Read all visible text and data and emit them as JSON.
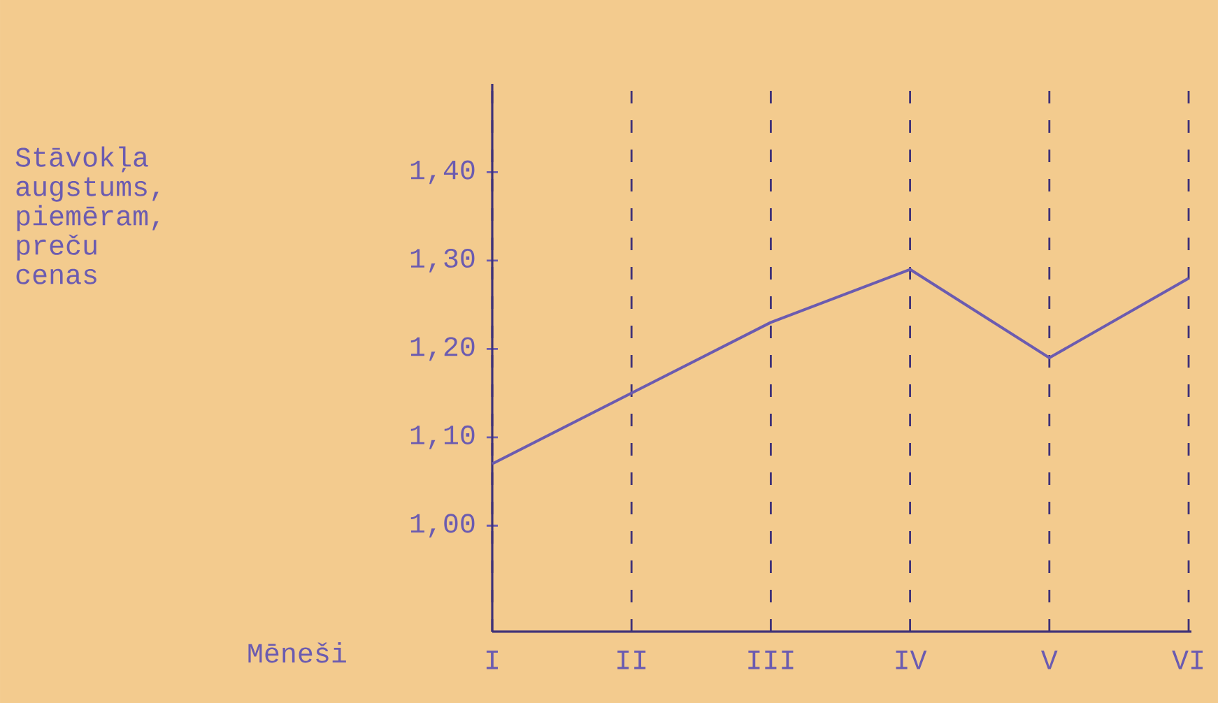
{
  "chart_data": {
    "type": "line",
    "xlabel": "Mēneši",
    "annotations": [
      "Stāvokļa augstums, piemēram, preču cenas"
    ],
    "categories": [
      "I",
      "II",
      "III",
      "IV",
      "V",
      "VI"
    ],
    "series": [
      {
        "color": "#6b5bb0",
        "values": [
          1.07,
          1.15,
          1.23,
          1.29,
          1.19,
          1.28
        ]
      }
    ],
    "ylim": [
      0.88,
      1.5
    ],
    "yticks": [
      {
        "value": 1.0,
        "label": "1,00"
      },
      {
        "value": 1.1,
        "label": "1,10"
      },
      {
        "value": 1.2,
        "label": "1,20"
      },
      {
        "value": 1.3,
        "label": "1,30"
      },
      {
        "value": 1.4,
        "label": "1,40"
      }
    ],
    "grid": "x",
    "marker": "none",
    "line_style": "solid"
  }
}
